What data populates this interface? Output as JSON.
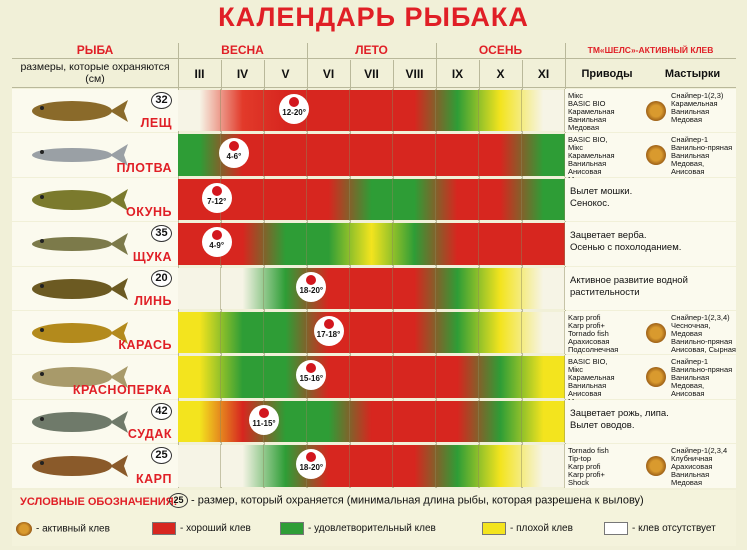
{
  "title": "КАЛЕНДАРЬ РЫБАКА",
  "header": {
    "fish": "РЫБА",
    "size_note": "размеры, которые охраняются (см)",
    "seasons": [
      "ВЕСНА",
      "ЛЕТО",
      "ОСЕНЬ"
    ],
    "brand": "ТМ«ШЕЛС»-АКТИВНЫЙ КЛЕВ",
    "months": [
      "III",
      "IV",
      "V",
      "VI",
      "VII",
      "VIII",
      "IX",
      "X",
      "XI"
    ],
    "baits": "Приводы",
    "pastes": "Мастырки"
  },
  "colors": {
    "good": "#d7261f",
    "ok": "#2e9d36",
    "poor": "#f3e41e",
    "none": "#ffffff",
    "accent": "#e01f26"
  },
  "fish": [
    {
      "name": "ЛЕЩ",
      "size": "32",
      "marker": "12-20°",
      "marker_month": 2.7,
      "baits": "Мікс\nBASIC BIO\nКарамельная\nВанильная\nМедовая",
      "pastes": "Снайпер-1(2,3)\nКарамельная\nВанильная\nМедовая",
      "colors": [
        "#f6f4e6",
        "#e23a2a",
        "#d7261f",
        "#d7261f",
        "#d7261f",
        "#d7261f",
        "#2e9d36",
        "#f3e41e",
        "#f6f4e6"
      ]
    },
    {
      "name": "ПЛОТВА",
      "size": "",
      "marker": "4-6°",
      "marker_month": 1.3,
      "baits": "BASIC BIO,\nМікс\nКарамельная\nВанильная\nАнисовая\nМедовая",
      "pastes": "Снайпер-1\nВанильно-пряная\nВанильная\nМедовая,\nАнисовая",
      "colors": [
        "#2e9d36",
        "#d7261f",
        "#d7261f",
        "#d7261f",
        "#d7261f",
        "#d7261f",
        "#d7261f",
        "#d7261f",
        "#2e9d36"
      ]
    },
    {
      "name": "ОКУНЬ",
      "size": "",
      "marker": "7-12°",
      "marker_month": 0.9,
      "long_note": "Вылет мошки.\nСенокос.",
      "colors": [
        "#d7261f",
        "#d7261f",
        "#d7261f",
        "#d7261f",
        "#2e9d36",
        "#2e9d36",
        "#d7261f",
        "#d7261f",
        "#2e9d36"
      ]
    },
    {
      "name": "ЩУКА",
      "size": "35",
      "marker": "4-9°",
      "marker_month": 0.9,
      "long_note": "Зацветает верба.\nОсенью с похолоданием.",
      "colors": [
        "#d7261f",
        "#d7261f",
        "#2e9d36",
        "#2e9d36",
        "#f3e41e",
        "#2e9d36",
        "#d7261f",
        "#d7261f",
        "#d7261f"
      ]
    },
    {
      "name": "ЛИНЬ",
      "size": "20",
      "marker": "18-20°",
      "marker_month": 3.1,
      "long_note": "Активное развитие водной растительности",
      "colors": [
        "#f6f4e6",
        "#f6f4e6",
        "#2e9d36",
        "#d7261f",
        "#d7261f",
        "#d7261f",
        "#2e9d36",
        "#f3e41e",
        "#f6f4e6"
      ]
    },
    {
      "name": "КАРАСЬ",
      "size": "",
      "marker": "17-18°",
      "marker_month": 3.5,
      "baits": "Karp profi\nKarp profi+\nTornado fish\nАрахисовая\nПодсолнечная",
      "pastes": "Снайпер-1(2,3,4)\nЧесночная,\nМедовая\nВанильно-пряная\nАнисовая, Сырная\nВанильная",
      "colors": [
        "#f3e41e",
        "#2e9d36",
        "#2e9d36",
        "#d7261f",
        "#d7261f",
        "#d7261f",
        "#2e9d36",
        "#f3e41e",
        "#f6f4e6"
      ]
    },
    {
      "name": "КРАСНОПЕРКА",
      "size": "",
      "marker": "15-16°",
      "marker_month": 3.1,
      "baits": "BASIC BIO,\nМікс\nКарамельная\nВанильная\nАнисовая\nМедовая",
      "pastes": "Снайпер-1\nВанильно-пряная\nВанильная\nМедовая,\nАнисовая",
      "colors": [
        "#f3e41e",
        "#2e9d36",
        "#2e9d36",
        "#d7261f",
        "#d7261f",
        "#d7261f",
        "#d7261f",
        "#2e9d36",
        "#f3e41e"
      ]
    },
    {
      "name": "СУДАК",
      "size": "42",
      "marker": "11-15°",
      "marker_month": 2.0,
      "long_note": "Зацветает рожь, липа.\nВылет оводов.",
      "colors": [
        "#f3e41e",
        "#d7261f",
        "#2e9d36",
        "#2e9d36",
        "#d7261f",
        "#d7261f",
        "#d7261f",
        "#2e9d36",
        "#f3e41e"
      ]
    },
    {
      "name": "КАРП",
      "size": "25",
      "marker": "18-20°",
      "marker_month": 3.1,
      "baits": "Tornado fish\nTip-top\nKarp profi\nKarp profi+\nShock",
      "pastes": "Снайпер-1(2,3,4\nКлубничная\nАрахисовая\nВанильная\nМедовая",
      "colors": [
        "#f6f4e6",
        "#f6f4e6",
        "#2e9d36",
        "#d7261f",
        "#d7261f",
        "#d7261f",
        "#2e9d36",
        "#f3e41e",
        "#f6f4e6"
      ]
    }
  ],
  "legend": {
    "title": "УСЛОВНЫЕ ОБОЗНАЧЕНИЯ:",
    "size_example": "25",
    "size_text": "- размер, который охраняется (минимальная длина рыбы, которая разрешена к вылову)",
    "items": [
      {
        "label": "- активный клев",
        "icon": "medal-icon"
      },
      {
        "label": "- хороший клев",
        "color": "#d7261f"
      },
      {
        "label": "- удовлетворительный клев",
        "color": "#2e9d36"
      },
      {
        "label": "- плохой клев",
        "color": "#f3e41e"
      },
      {
        "label": "- клев отсутствует",
        "color": "#ffffff"
      }
    ]
  }
}
